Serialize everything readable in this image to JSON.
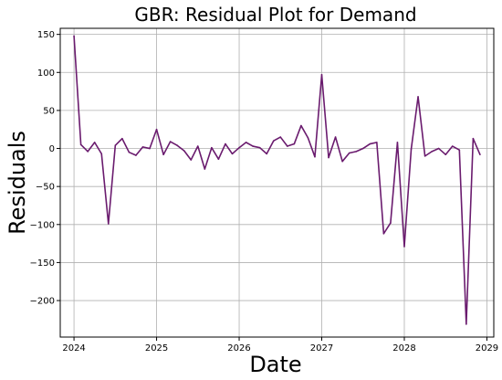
{
  "chart_data": {
    "type": "line",
    "title": "GBR: Residual Plot for Demand",
    "xlabel": "Date",
    "ylabel": "Residuals",
    "x": [
      "2024-01",
      "2024-02",
      "2024-03",
      "2024-04",
      "2024-05",
      "2024-06",
      "2024-07",
      "2024-08",
      "2024-09",
      "2024-10",
      "2024-11",
      "2024-12",
      "2025-01",
      "2025-02",
      "2025-03",
      "2025-04",
      "2025-05",
      "2025-06",
      "2025-07",
      "2025-08",
      "2025-09",
      "2025-10",
      "2025-11",
      "2025-12",
      "2026-01",
      "2026-02",
      "2026-03",
      "2026-04",
      "2026-05",
      "2026-06",
      "2026-07",
      "2026-08",
      "2026-09",
      "2026-10",
      "2026-11",
      "2026-12",
      "2027-01",
      "2027-02",
      "2027-03",
      "2027-04",
      "2027-05",
      "2027-06",
      "2027-07",
      "2027-08",
      "2027-09",
      "2027-10",
      "2027-11",
      "2027-12",
      "2028-01",
      "2028-02",
      "2028-03",
      "2028-04",
      "2028-05",
      "2028-06",
      "2028-07",
      "2028-08",
      "2028-09",
      "2028-10",
      "2028-11",
      "2028-12"
    ],
    "series": [
      {
        "values": [
          148,
          5,
          -4,
          8,
          -7,
          -99,
          4,
          13,
          -5,
          -9,
          2,
          0,
          25,
          -8,
          9,
          4,
          -3,
          -15,
          3,
          -27,
          1,
          -14,
          6,
          -7,
          1,
          8,
          3,
          1,
          -7,
          10,
          15,
          3,
          6,
          30,
          14,
          -11,
          97,
          -12,
          15,
          -17,
          -6,
          -4,
          0,
          6,
          8,
          -112,
          -98,
          8,
          -129,
          -1,
          68,
          -10,
          -4,
          0,
          -8,
          3,
          -2,
          -231,
          13,
          -8
        ]
      }
    ],
    "color": "#6a1b6e",
    "ylim": [
      -248,
      158
    ],
    "yticks": [
      150,
      100,
      50,
      0,
      -50,
      -100,
      -150,
      -200
    ],
    "ytick_labels": [
      "150",
      "100",
      "50",
      "0",
      "−50",
      "−100",
      "−150",
      "−200"
    ],
    "xticks": [
      "2024-01",
      "2025-01",
      "2026-01",
      "2027-01",
      "2028-01",
      "2029-01"
    ],
    "xtick_labels": [
      "2024",
      "2025",
      "2026",
      "2027",
      "2028",
      "2029"
    ],
    "xlim": [
      "2023-11",
      "2029-02"
    ],
    "grid": true,
    "legend": "none"
  }
}
